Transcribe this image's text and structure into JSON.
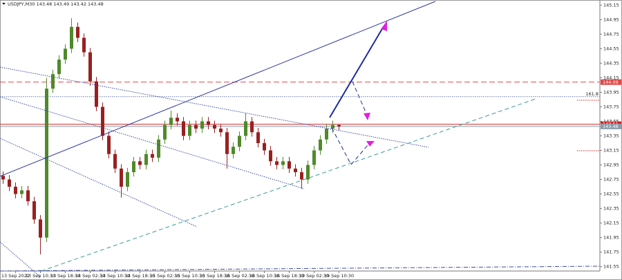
{
  "chart_data": {
    "type": "candlestick",
    "title": "USDJPY,M30  143.48 143.49 143.42 143.48",
    "categories": [
      null,
      null,
      "13 Sep 2022",
      null,
      null,
      null,
      "13 Sep 10:30",
      null,
      null,
      null,
      "13 Sep 18:30",
      null,
      null,
      null,
      "14 Sep 02:30",
      null,
      null,
      null,
      "14 Sep 10:30",
      null,
      null,
      null,
      "14 Sep 18:30",
      null,
      null,
      null,
      "15 Sep 02:30",
      null,
      null,
      null,
      "15 Sep 10:30",
      null,
      null,
      null,
      "15 Sep 18:30",
      null,
      null,
      null,
      "16 Sep 02:30",
      null,
      null,
      null,
      "16 Sep 10:30",
      null,
      null,
      null,
      "16 Sep 18:30",
      null,
      null,
      null,
      "19 Sep 02:30",
      null,
      null,
      null,
      "19 Sep 10:30"
    ],
    "open": [
      142.8,
      142.75,
      142.65,
      142.55,
      142.6,
      142.45,
      142.2,
      141.95,
      144.0,
      144.2,
      144.4,
      144.55,
      144.85,
      144.7,
      144.5,
      144.1,
      143.75,
      143.35,
      143.1,
      142.9,
      142.65,
      142.85,
      143.0,
      142.95,
      143.1,
      143.05,
      143.3,
      143.5,
      143.6,
      143.55,
      143.35,
      143.5,
      143.45,
      143.55,
      143.5,
      143.45,
      143.4,
      143.1,
      143.2,
      143.35,
      143.55,
      143.4,
      143.25,
      143.15,
      143.0,
      142.95,
      143.0,
      142.9,
      142.85,
      142.75,
      142.95,
      143.15,
      143.3,
      143.45,
      143.5
    ],
    "high": [
      142.86,
      142.81,
      142.71,
      142.66,
      142.66,
      142.51,
      142.26,
      144.15,
      144.26,
      144.46,
      144.61,
      144.97,
      144.91,
      144.76,
      144.56,
      144.16,
      143.81,
      143.41,
      143.16,
      142.96,
      142.91,
      143.06,
      143.06,
      143.16,
      143.16,
      143.36,
      143.56,
      143.7,
      143.66,
      143.61,
      143.56,
      143.56,
      143.61,
      143.61,
      143.56,
      143.51,
      143.46,
      143.26,
      143.41,
      143.66,
      143.61,
      143.46,
      143.31,
      143.21,
      143.06,
      143.06,
      143.06,
      142.96,
      142.91,
      143.01,
      143.21,
      143.36,
      143.51,
      143.56,
      143.51
    ],
    "low": [
      142.69,
      142.59,
      142.49,
      142.49,
      142.39,
      142.14,
      141.72,
      141.89,
      143.94,
      144.14,
      144.34,
      144.49,
      144.64,
      144.44,
      144.04,
      143.69,
      143.29,
      143.04,
      142.84,
      142.5,
      142.59,
      142.79,
      142.89,
      142.89,
      142.99,
      142.99,
      143.24,
      143.44,
      143.49,
      143.29,
      143.29,
      143.39,
      143.39,
      143.44,
      143.39,
      143.34,
      142.9,
      143.04,
      143.14,
      143.29,
      143.34,
      143.19,
      143.09,
      142.94,
      142.89,
      142.89,
      142.84,
      142.79,
      142.62,
      142.69,
      142.89,
      143.09,
      143.24,
      143.39,
      143.42
    ],
    "close": [
      142.75,
      142.65,
      142.55,
      142.6,
      142.45,
      142.2,
      141.95,
      144.0,
      144.2,
      144.4,
      144.55,
      144.85,
      144.7,
      144.5,
      144.1,
      143.75,
      143.35,
      143.1,
      142.9,
      142.65,
      142.85,
      143.0,
      142.95,
      143.1,
      143.05,
      143.3,
      143.5,
      143.6,
      143.55,
      143.35,
      143.5,
      143.45,
      143.55,
      143.5,
      143.45,
      143.4,
      143.1,
      143.2,
      143.35,
      143.55,
      143.4,
      143.25,
      143.15,
      143.0,
      142.95,
      143.0,
      142.9,
      142.85,
      142.75,
      142.95,
      143.15,
      143.3,
      143.45,
      143.5,
      143.48
    ],
    "up_color": "#4f8a2a",
    "down_color": "#9a2020",
    "ylim": [
      141.49,
      145.22
    ],
    "yticks": [
      145.15,
      144.95,
      144.75,
      144.55,
      144.35,
      144.15,
      143.95,
      143.75,
      143.55,
      143.35,
      143.15,
      142.95,
      142.75,
      142.55,
      142.35,
      142.15,
      141.95,
      141.75,
      141.55
    ],
    "levels": [
      {
        "value": 144.09,
        "color": "#e04848",
        "style": "dashed",
        "axis_label": true
      },
      {
        "value": 143.51,
        "color": "#d02020",
        "style": "solid",
        "axis_label": true
      },
      {
        "value": 143.48,
        "color": "#8a9aa8",
        "style": "solid",
        "axis_label": true
      },
      {
        "value": 143.89,
        "color": "#6677aa",
        "style": "dotted",
        "axis_label": false
      }
    ],
    "annotation": "161.8"
  }
}
